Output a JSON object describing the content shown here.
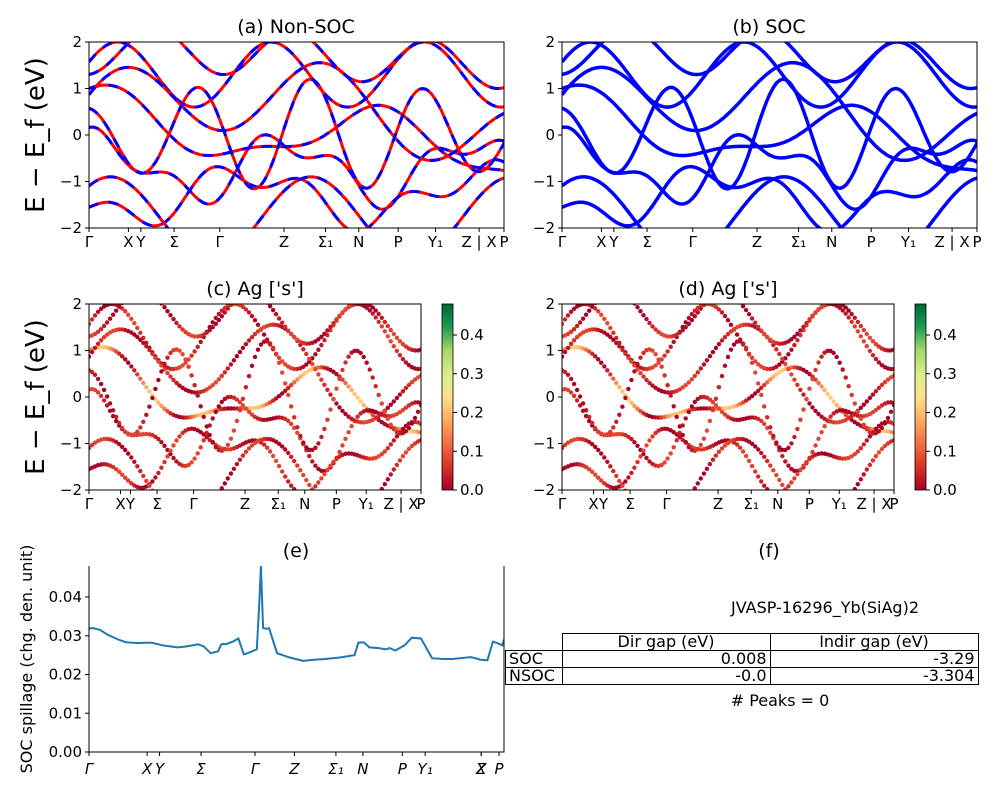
{
  "panels": {
    "a": {
      "title": "(a) Non-SOC",
      "ylabel": "E − E_f (eV)"
    },
    "b": {
      "title": "(b) SOC"
    },
    "c": {
      "title": "(c)  Ag ['s']",
      "ylabel": "E − E_f (eV)"
    },
    "d": {
      "title": "(d) Ag ['s']"
    },
    "e": {
      "title": "(e)",
      "ylabel": "SOC spillage (chg. den. unit)"
    },
    "f": {
      "title": "(f)"
    }
  },
  "chart_data": [
    {
      "id": "a",
      "type": "line",
      "title": "(a) Non-SOC",
      "ylabel": "E − E_f (eV)",
      "ylim": [
        -2,
        2
      ],
      "yticks": [
        "2",
        "1",
        "0",
        "−1",
        "−2"
      ],
      "xticks": [
        "Γ",
        "X",
        "Y",
        "Σ",
        "Γ",
        "Z",
        "Σ₁",
        "N",
        "P",
        "Y₁",
        "Z | X",
        "P"
      ],
      "colors": {
        "nsoc": "#ff0000",
        "soc": "#0000ff"
      }
    },
    {
      "id": "b",
      "type": "line",
      "title": "(b) SOC",
      "ylim": [
        -2,
        2
      ],
      "yticks": [
        "2",
        "1",
        "0",
        "−1",
        "−2"
      ],
      "xticks": [
        "Γ",
        "X",
        "Y",
        "Σ",
        "Γ",
        "Z",
        "Σ₁",
        "N",
        "P",
        "Y₁",
        "Z | X",
        "P"
      ],
      "colors": {
        "soc": "#0000ff"
      }
    },
    {
      "id": "c",
      "type": "scatter",
      "title": "(c)  Ag ['s']",
      "ylabel": "E − E_f (eV)",
      "ylim": [
        -2,
        2
      ],
      "yticks": [
        "2",
        "1",
        "0",
        "−1",
        "−2"
      ],
      "xticks": [
        "Γ",
        "X",
        "Y",
        "Σ",
        "Γ",
        "Z",
        "Σ₁",
        "N",
        "P",
        "Y₁",
        "Z | X",
        "P"
      ],
      "colorbar": {
        "ticks": [
          "0.4",
          "0.3",
          "0.2",
          "0.1",
          "0.0"
        ],
        "range": [
          0,
          0.48
        ],
        "colormap": "RdYlGn"
      }
    },
    {
      "id": "d",
      "type": "scatter",
      "title": "(d) Ag ['s']",
      "ylim": [
        -2,
        2
      ],
      "yticks": [
        "2",
        "1",
        "0",
        "−1",
        "−2"
      ],
      "xticks": [
        "Γ",
        "X",
        "Y",
        "Σ",
        "Γ",
        "Z",
        "Σ₁",
        "N",
        "P",
        "Y₁",
        "Z | X",
        "P"
      ],
      "colorbar": {
        "ticks": [
          "0.4",
          "0.3",
          "0.2",
          "0.1",
          "0.0"
        ],
        "range": [
          0,
          0.48
        ],
        "colormap": "RdYlGn"
      }
    },
    {
      "id": "e",
      "type": "line",
      "title": "(e)",
      "ylabel": "SOC spillage (chg. den. unit)",
      "ylim": [
        0,
        0.048
      ],
      "yticks": [
        "0.04",
        "0.03",
        "0.02",
        "0.01",
        "0.00"
      ],
      "xticks": [
        "Γ",
        "X",
        "Y",
        "Σ",
        "Γ",
        "Z",
        "Σ₁",
        "N",
        "P",
        "Y₁",
        "Z",
        "X",
        "P"
      ],
      "series": [
        {
          "color": "#1f77b4",
          "x": [
            0,
            0.1,
            0.3,
            0.5,
            0.8,
            1.0,
            1.35,
            1.5,
            1.7,
            2.0,
            2.4,
            2.6,
            2.75,
            2.85,
            2.95,
            3.1,
            3.3,
            3.5,
            3.58,
            3.62,
            3.7,
            3.9,
            4.05,
            4.2,
            4.35,
            4.55,
            4.62,
            4.66,
            4.72,
            4.82,
            4.88,
            5.1,
            5.4,
            5.6,
            5.8,
            6.1,
            6.4,
            6.8,
            7.2,
            7.3,
            7.45,
            7.6,
            7.85,
            8.05,
            8.15,
            8.3,
            8.55,
            8.75,
            9.0,
            9.3,
            9.6,
            9.85,
            10.35,
            10.55,
            10.6,
            10.8,
            10.95,
            11.1,
            11.2,
            11.25
          ],
          "y": [
            0.0318,
            0.032,
            0.0315,
            0.0303,
            0.029,
            0.0283,
            0.0281,
            0.0282,
            0.0282,
            0.0275,
            0.027,
            0.0272,
            0.0274,
            0.0276,
            0.0278,
            0.0273,
            0.0255,
            0.026,
            0.0277,
            0.0279,
            0.0278,
            0.0285,
            0.0293,
            0.0252,
            0.0257,
            0.0265,
            0.039,
            0.048,
            0.032,
            0.0318,
            0.032,
            0.0255,
            0.0245,
            0.024,
            0.0235,
            0.0238,
            0.024,
            0.0244,
            0.025,
            0.0282,
            0.0283,
            0.027,
            0.0268,
            0.0265,
            0.0268,
            0.0262,
            0.0275,
            0.0295,
            0.0293,
            0.0242,
            0.024,
            0.024,
            0.0245,
            0.024,
            0.0238,
            0.0237,
            0.0285,
            0.028,
            0.0275,
            0.029
          ]
        }
      ]
    }
  ],
  "info": {
    "material": "JVASP-16296_Yb(SiAg)2",
    "table": {
      "headers": [
        "Dir gap (eV)",
        "Indir gap (eV)"
      ],
      "rows": [
        {
          "label": "SOC",
          "dir": "0.008",
          "indir": "-3.29"
        },
        {
          "label": "NSOC",
          "dir": "-0.0",
          "indir": "-3.304"
        }
      ]
    },
    "peaks": "# Peaks = 0"
  }
}
